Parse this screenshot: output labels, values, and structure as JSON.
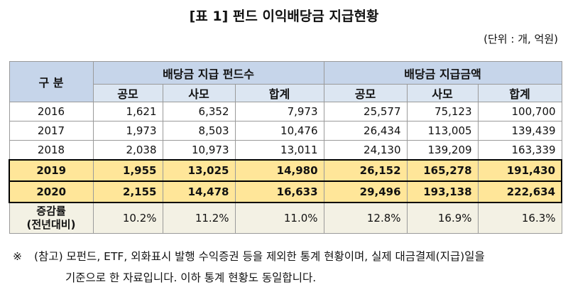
{
  "title": "[표 1] 펀드 이익배당금 지급현황",
  "unit": "(단위 : 개, 억원)",
  "table": {
    "corner": "구 분",
    "groups": [
      "배당금 지급 펀드수",
      "배당금 지급금액"
    ],
    "subheaders": [
      "공모",
      "사모",
      "합계",
      "공모",
      "사모",
      "합계"
    ],
    "rows": [
      {
        "label": "2016",
        "cells": [
          "1,621",
          "6,352",
          "7,973",
          "25,577",
          "75,123",
          "100,700"
        ]
      },
      {
        "label": "2017",
        "cells": [
          "1,973",
          "8,503",
          "10,476",
          "26,434",
          "113,005",
          "139,439"
        ]
      },
      {
        "label": "2018",
        "cells": [
          "2,038",
          "10,973",
          "13,011",
          "24,130",
          "139,209",
          "163,339"
        ]
      },
      {
        "label": "2019",
        "cells": [
          "1,955",
          "13,025",
          "14,980",
          "26,152",
          "165,278",
          "191,430"
        ]
      },
      {
        "label": "2020",
        "cells": [
          "2,155",
          "14,478",
          "16,633",
          "29,496",
          "193,138",
          "222,634"
        ]
      }
    ],
    "change": {
      "label": [
        "증감률",
        "(전년대비)"
      ],
      "cells": [
        "10.2%",
        "11.2%",
        "11.0%",
        "12.8%",
        "16.9%",
        "16.3%"
      ]
    }
  },
  "note": {
    "mark": "※",
    "lines": [
      "(참고) 모펀드, ETF, 외화표시 발행 수익증권 등을 제외한 통계 현황이며, 실제 대금결제(지급)일을",
      "기준으로 한 자료입니다. 이하 통계 현황도 동일합니다."
    ]
  }
}
